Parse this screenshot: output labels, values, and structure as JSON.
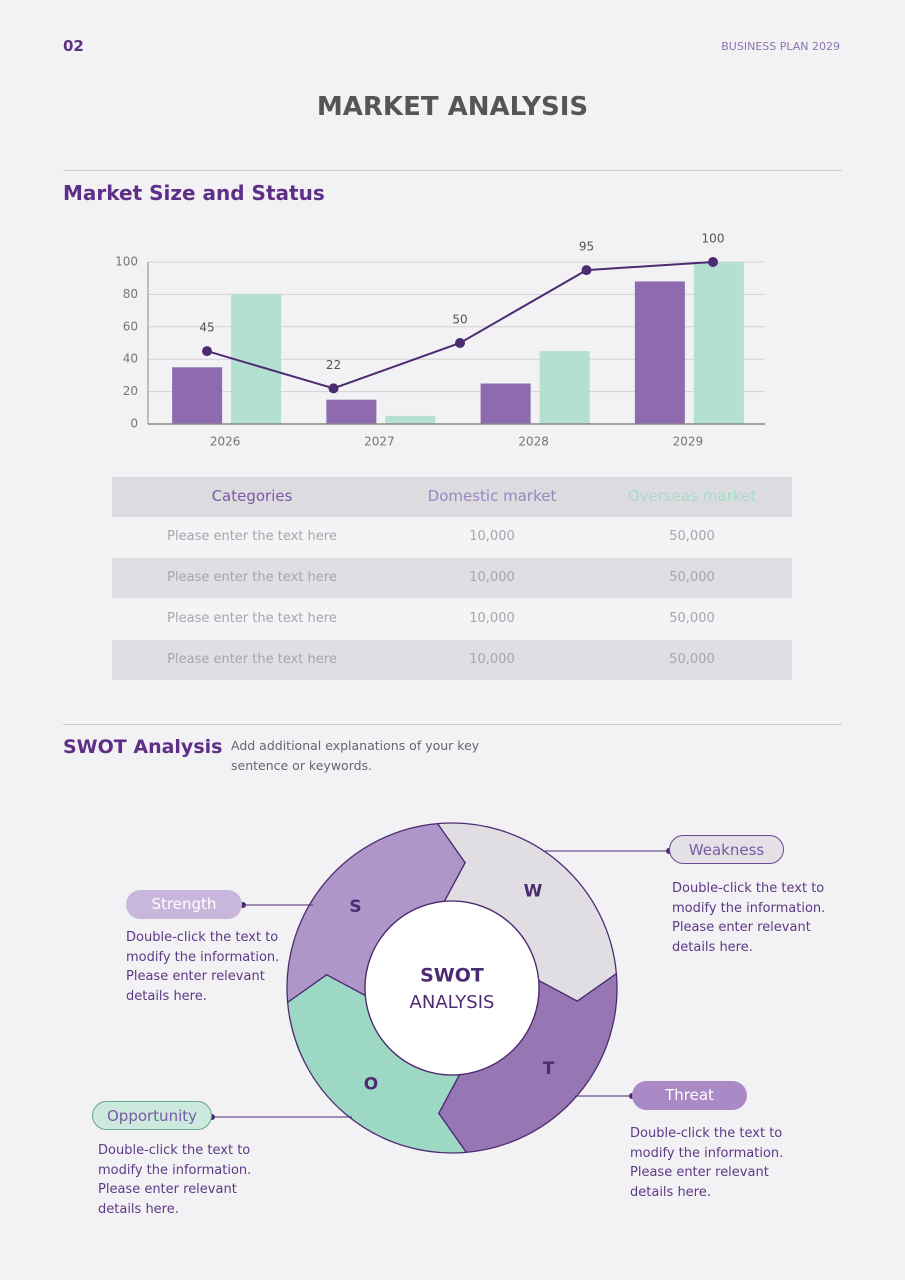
{
  "header": {
    "page_number": "02",
    "document_title": "BUSINESS PLAN 2029"
  },
  "title": "MARKET ANALYSIS",
  "market_section": {
    "title": "Market Size and Status"
  },
  "chart_data": [
    {
      "type": "bar",
      "categories": [
        "2026",
        "2027",
        "2028",
        "2029"
      ],
      "series": [
        {
          "color": "#8d6bae",
          "values": [
            35,
            15,
            25,
            88
          ]
        },
        {
          "color": "#b3e0d1",
          "values": [
            80,
            5,
            45,
            100
          ]
        }
      ],
      "ylim": [
        0,
        100
      ],
      "yticks": [
        0,
        20,
        40,
        60,
        80,
        100
      ],
      "grid": true
    },
    {
      "type": "line",
      "series": [
        {
          "color": "#4d2b72",
          "values": [
            45,
            22,
            50,
            95,
            100
          ]
        }
      ],
      "ylim": [
        0,
        100
      ]
    }
  ],
  "table": {
    "header": [
      "Categories",
      "Domestic market",
      "Overseas market"
    ],
    "rows": [
      [
        "Please enter the text here",
        "10,000",
        "50,000"
      ],
      [
        "Please enter the text here",
        "10,000",
        "50,000"
      ],
      [
        "Please enter the text here",
        "10,000",
        "50,000"
      ],
      [
        "Please enter the text here",
        "10,000",
        "50,000"
      ]
    ]
  },
  "swot_section": {
    "title": "SWOT Analysis",
    "description": "Add additional explanations of your key sentence or keywords."
  },
  "swot": {
    "center_title": "SWOT",
    "center_subtitle": "ANALYSIS",
    "segments": [
      {
        "letter": "S",
        "label": "Strength",
        "description": "Double-click the text to modify the information. Please enter relevant details here."
      },
      {
        "letter": "W",
        "label": "Weakness",
        "description": "Double-click the text to modify the information. Please enter relevant details here."
      },
      {
        "letter": "O",
        "label": "Opportunity",
        "description": "Double-click the text to modify the information. Please enter relevant details here."
      },
      {
        "letter": "T",
        "label": "Threat",
        "description": "Double-click the text to modify the information. Please enter relevant details here."
      }
    ]
  }
}
